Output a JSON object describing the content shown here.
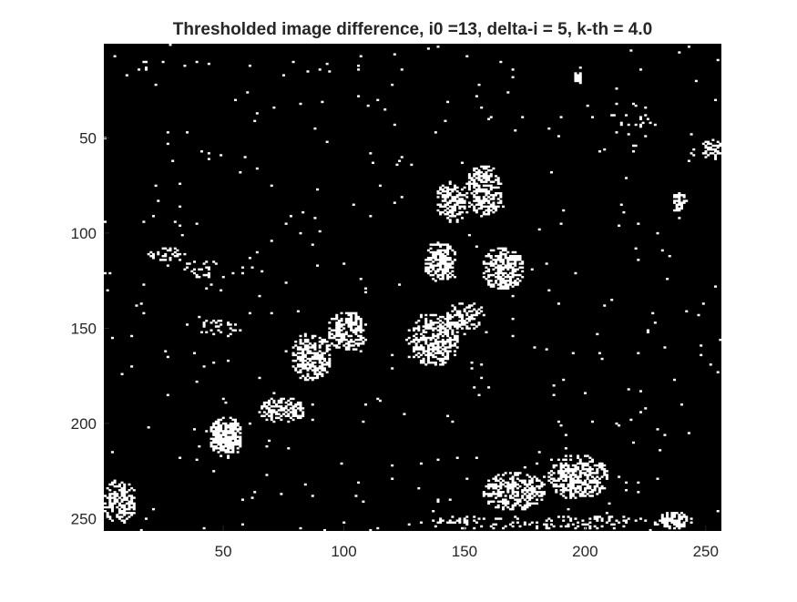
{
  "chart_data": {
    "type": "heatmap",
    "title": "Thresholded image difference, i0 =13, delta-i = 5, k-th = 4.0",
    "xlabel": "",
    "ylabel": "",
    "xlim": [
      0.5,
      256.5
    ],
    "ylim": [
      0.5,
      256.5
    ],
    "y_reversed": true,
    "x_ticks": [
      50,
      100,
      150,
      200,
      250
    ],
    "y_ticks": [
      50,
      100,
      150,
      200,
      250
    ],
    "x_tick_labels": [
      "50",
      "100",
      "150",
      "200",
      "250"
    ],
    "y_tick_labels": [
      "50",
      "100",
      "150",
      "200",
      "250"
    ],
    "colormap": "binary",
    "background_value": 0,
    "foreground_value": 1,
    "colors": {
      "background": "#000000",
      "foreground": "#ffffff",
      "axis": "#262626"
    },
    "grid": false,
    "blobs": [
      {
        "x": [
          138,
          152
        ],
        "y": [
          72,
          95
        ],
        "density": 0.55
      },
      {
        "x": [
          150,
          166
        ],
        "y": [
          64,
          92
        ],
        "density": 0.55
      },
      {
        "x": [
          133,
          147
        ],
        "y": [
          104,
          126
        ],
        "density": 0.65
      },
      {
        "x": [
          157,
          175
        ],
        "y": [
          107,
          130
        ],
        "density": 0.6
      },
      {
        "x": [
          126,
          148
        ],
        "y": [
          142,
          170
        ],
        "density": 0.55
      },
      {
        "x": [
          141,
          159
        ],
        "y": [
          136,
          152
        ],
        "density": 0.45
      },
      {
        "x": [
          78,
          95
        ],
        "y": [
          152,
          178
        ],
        "density": 0.55
      },
      {
        "x": [
          93,
          110
        ],
        "y": [
          141,
          162
        ],
        "density": 0.6
      },
      {
        "x": [
          44,
          58
        ],
        "y": [
          196,
          218
        ],
        "density": 0.75
      },
      {
        "x": [
          64,
          84
        ],
        "y": [
          186,
          200
        ],
        "density": 0.55
      },
      {
        "x": [
          157,
          184
        ],
        "y": [
          225,
          246
        ],
        "density": 0.5
      },
      {
        "x": [
          184,
          210
        ],
        "y": [
          216,
          240
        ],
        "density": 0.55
      },
      {
        "x": [
          0,
          14
        ],
        "y": [
          229,
          253
        ],
        "density": 0.55
      },
      {
        "x": [
          230,
          245
        ],
        "y": [
          246,
          256
        ],
        "density": 0.6
      },
      {
        "x": [
          248,
          257
        ],
        "y": [
          50,
          62
        ],
        "density": 0.45
      },
      {
        "x": [
          236,
          242
        ],
        "y": [
          78,
          90
        ],
        "density": 0.5
      },
      {
        "x": [
          195,
          199
        ],
        "y": [
          15,
          22
        ],
        "density": 0.7
      },
      {
        "x": [
          130,
          235
        ],
        "y": [
          248,
          256
        ],
        "density": 0.2
      },
      {
        "x": [
          18,
          35
        ],
        "y": [
          107,
          115
        ],
        "density": 0.25
      },
      {
        "x": [
          33,
          50
        ],
        "y": [
          114,
          125
        ],
        "density": 0.2
      },
      {
        "x": [
          38,
          58
        ],
        "y": [
          145,
          155
        ],
        "density": 0.18
      },
      {
        "x": [
          210,
          230
        ],
        "y": [
          30,
          55
        ],
        "density": 0.08
      }
    ],
    "noise_density": 0.006
  }
}
